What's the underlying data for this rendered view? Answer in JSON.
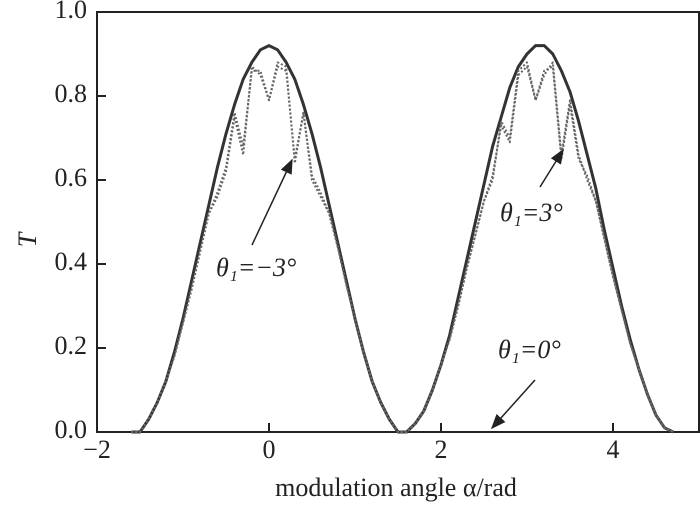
{
  "chart_data": {
    "type": "line",
    "xlabel": "modulation angle α/rad",
    "ylabel": "T",
    "x": [
      -1.6,
      -1.5,
      -1.4,
      -1.3,
      -1.2,
      -1.1,
      -1.0,
      -0.9,
      -0.8,
      -0.7,
      -0.6,
      -0.5,
      -0.4,
      -0.3,
      -0.2,
      -0.1,
      0,
      0.1,
      0.2,
      0.3,
      0.4,
      0.5,
      0.6,
      0.7,
      0.8,
      0.9,
      1.0,
      1.1,
      1.2,
      1.3,
      1.4,
      1.5,
      1.6,
      1.7,
      1.8,
      1.9,
      2.0,
      2.1,
      2.2,
      2.3,
      2.4,
      2.5,
      2.6,
      2.7,
      2.8,
      2.9,
      3.0,
      3.1,
      3.2,
      3.3,
      3.4,
      3.5,
      3.6,
      3.7,
      3.8,
      3.9,
      4.0,
      4.1,
      4.2,
      4.3,
      4.4,
      4.5,
      4.6,
      4.7
    ],
    "series": [
      {
        "name": "θ₁=0°",
        "color": "#333333",
        "values": [
          0.0,
          0.0,
          0.03,
          0.07,
          0.12,
          0.19,
          0.27,
          0.36,
          0.45,
          0.54,
          0.63,
          0.71,
          0.78,
          0.84,
          0.88,
          0.91,
          0.92,
          0.91,
          0.88,
          0.84,
          0.78,
          0.71,
          0.63,
          0.54,
          0.45,
          0.36,
          0.27,
          0.19,
          0.12,
          0.07,
          0.03,
          0.0,
          0.0,
          0.02,
          0.05,
          0.1,
          0.16,
          0.23,
          0.32,
          0.41,
          0.5,
          0.59,
          0.68,
          0.75,
          0.82,
          0.87,
          0.9,
          0.92,
          0.92,
          0.9,
          0.86,
          0.81,
          0.74,
          0.66,
          0.58,
          0.48,
          0.39,
          0.3,
          0.22,
          0.15,
          0.09,
          0.04,
          0.01,
          0.0
        ]
      },
      {
        "name": "θ₁=−3°",
        "color": "#666666",
        "values": [
          0.0,
          0.0,
          0.03,
          0.07,
          0.12,
          0.18,
          0.26,
          0.34,
          0.43,
          0.52,
          0.57,
          0.63,
          0.76,
          0.68,
          0.86,
          0.86,
          0.79,
          0.88,
          0.87,
          0.64,
          0.76,
          0.6,
          0.56,
          0.52,
          0.44,
          0.35,
          0.27,
          0.19,
          0.12,
          0.07,
          0.03,
          0.0,
          0.0,
          0.02,
          0.05,
          0.1,
          0.16,
          0.22,
          0.3,
          0.39,
          0.47,
          0.55,
          0.6,
          0.74,
          0.7,
          0.86,
          0.88,
          0.79,
          0.85,
          0.88,
          0.66,
          0.79,
          0.66,
          0.6,
          0.55,
          0.46,
          0.37,
          0.29,
          0.21,
          0.15,
          0.09,
          0.04,
          0.01,
          0.0
        ]
      },
      {
        "name": "θ₁=3°",
        "color": "#666666",
        "values": [
          0.0,
          0.0,
          0.03,
          0.07,
          0.12,
          0.18,
          0.26,
          0.34,
          0.43,
          0.52,
          0.56,
          0.62,
          0.75,
          0.66,
          0.87,
          0.85,
          0.79,
          0.87,
          0.86,
          0.65,
          0.76,
          0.61,
          0.57,
          0.52,
          0.44,
          0.35,
          0.27,
          0.19,
          0.12,
          0.07,
          0.03,
          0.0,
          0.0,
          0.02,
          0.05,
          0.1,
          0.16,
          0.22,
          0.3,
          0.39,
          0.47,
          0.55,
          0.61,
          0.73,
          0.69,
          0.85,
          0.87,
          0.79,
          0.86,
          0.87,
          0.65,
          0.78,
          0.65,
          0.61,
          0.55,
          0.46,
          0.37,
          0.29,
          0.21,
          0.15,
          0.09,
          0.04,
          0.01,
          0.0
        ]
      }
    ],
    "xlim": [
      -2,
      5
    ],
    "ylim": [
      0,
      1
    ],
    "xticks": [
      {
        "value": -2,
        "label": "−2"
      },
      0,
      2,
      4
    ],
    "yticks": [
      {
        "value": 0,
        "label": "0.0"
      },
      0.2,
      0.4,
      0.6,
      0.8,
      {
        "value": 1,
        "label": "1.0"
      }
    ],
    "grid": false
  }
}
